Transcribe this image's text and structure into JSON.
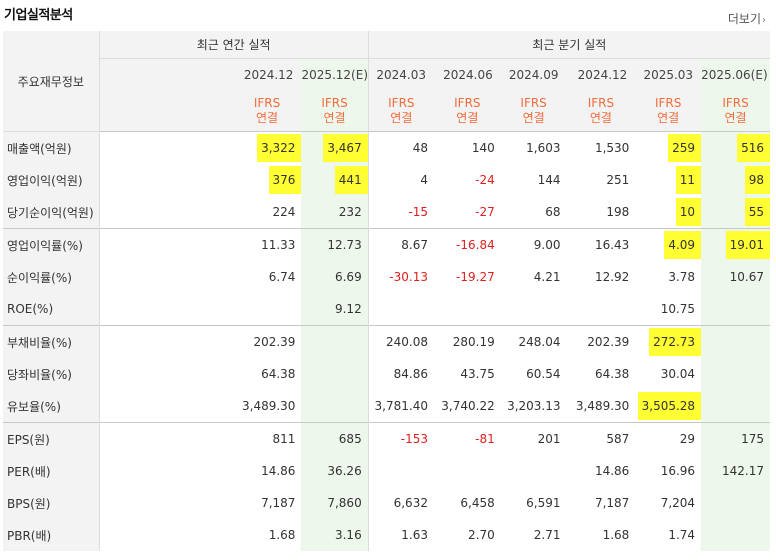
{
  "title": "기업실적분석",
  "more_link": "더보기",
  "header": {
    "row_label": "주요재무정보",
    "annual_group": "최근 연간 실적",
    "quarter_group": "최근 분기 실적",
    "periods": [
      "2024.12",
      "2025.12(E)",
      "2024.03",
      "2024.06",
      "2024.09",
      "2024.12",
      "2025.03",
      "2025.06(E)"
    ],
    "ifrs": "IFRS",
    "consolidated": "연결"
  },
  "rows": [
    {
      "label": "매출액(억원)",
      "values": [
        "3,322",
        "3,467",
        "48",
        "140",
        "1,603",
        "1,530",
        "259",
        "516"
      ]
    },
    {
      "label": "영업이익(억원)",
      "values": [
        "376",
        "441",
        "4",
        "-24",
        "144",
        "251",
        "11",
        "98"
      ]
    },
    {
      "label": "당기순이익(억원)",
      "values": [
        "224",
        "232",
        "-15",
        "-27",
        "68",
        "198",
        "10",
        "55"
      ]
    },
    {
      "label": "영업이익률(%)",
      "values": [
        "11.33",
        "12.73",
        "8.67",
        "-16.84",
        "9.00",
        "16.43",
        "4.09",
        "19.01"
      ]
    },
    {
      "label": "순이익률(%)",
      "values": [
        "6.74",
        "6.69",
        "-30.13",
        "-19.27",
        "4.21",
        "12.92",
        "3.78",
        "10.67"
      ]
    },
    {
      "label": "ROE(%)",
      "values": [
        "",
        "9.12",
        "",
        "",
        "",
        "",
        "10.75",
        ""
      ]
    },
    {
      "label": "부채비율(%)",
      "values": [
        "202.39",
        "",
        "240.08",
        "280.19",
        "248.04",
        "202.39",
        "272.73",
        ""
      ]
    },
    {
      "label": "당좌비율(%)",
      "values": [
        "64.38",
        "",
        "84.86",
        "43.75",
        "60.54",
        "64.38",
        "30.04",
        ""
      ]
    },
    {
      "label": "유보율(%)",
      "values": [
        "3,489.30",
        "",
        "3,781.40",
        "3,740.22",
        "3,203.13",
        "3,489.30",
        "3,505.28",
        ""
      ]
    },
    {
      "label": "EPS(원)",
      "values": [
        "811",
        "685",
        "-153",
        "-81",
        "201",
        "587",
        "29",
        "175"
      ]
    },
    {
      "label": "PER(배)",
      "values": [
        "14.86",
        "36.26",
        "",
        "",
        "",
        "14.86",
        "16.96",
        "142.17"
      ]
    },
    {
      "label": "BPS(원)",
      "values": [
        "7,187",
        "7,860",
        "6,632",
        "6,458",
        "6,591",
        "7,187",
        "7,204",
        ""
      ]
    },
    {
      "label": "PBR(배)",
      "values": [
        "1.68",
        "3.16",
        "1.63",
        "2.70",
        "2.71",
        "1.68",
        "1.74",
        ""
      ]
    }
  ],
  "colors": {
    "ifrs_orange": "#f26c3c",
    "negative_red": "#e02020",
    "highlight_yellow": "#ffff33",
    "estimate_bg": "#eef7ec",
    "header_bg": "#f3f3f3"
  }
}
